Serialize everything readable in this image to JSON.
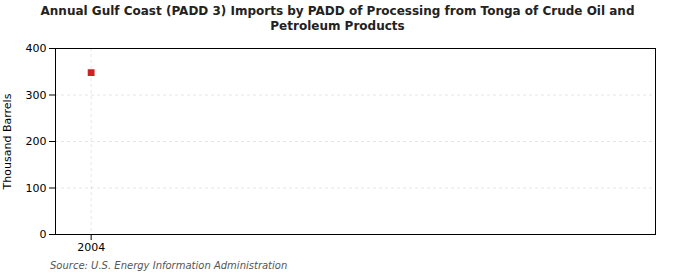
{
  "chart_data": {
    "type": "scatter",
    "title": "Annual Gulf Coast (PADD 3) Imports by PADD of Processing from Tonga of Crude Oil and\nPetroleum Products",
    "ylabel": "Thousand Barrels",
    "source": "Source: U.S. Energy Information Administration",
    "x": [
      2004
    ],
    "values": [
      348
    ],
    "color": "#cc2222",
    "marker": "square",
    "xlim": [
      2003.4,
      2013.5
    ],
    "xticks": [
      2004
    ],
    "ylim": [
      0,
      400
    ],
    "yticks": [
      0,
      100,
      200,
      300,
      400
    ],
    "grid": true
  }
}
